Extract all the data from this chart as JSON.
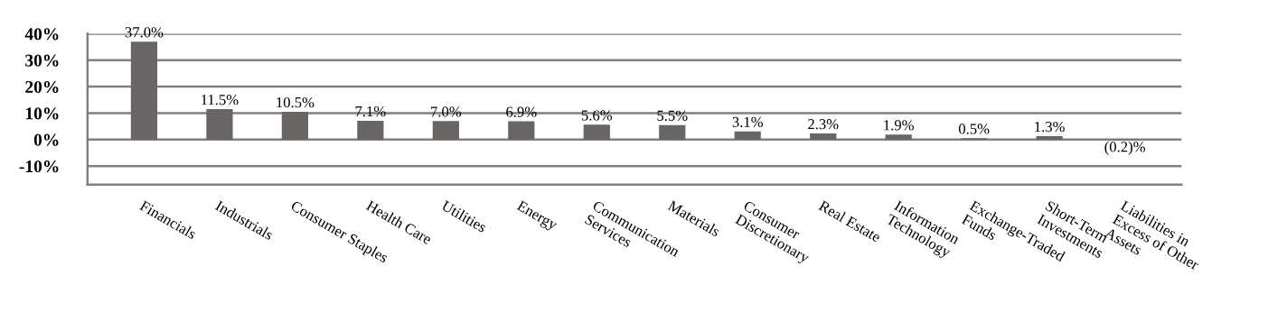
{
  "chart_data": {
    "type": "bar",
    "categories": [
      "Financials",
      "Industrials",
      "Consumer Staples",
      "Health Care",
      "Utilities",
      "Energy",
      "Communication\nServices",
      "Materials",
      "Consumer\nDiscretionary",
      "Real Estate",
      "Information\nTechnology",
      "Exchange-Traded\nFunds",
      "Short-Term\nInvestments",
      "Liabilities in\nExcess of Other\nAssets"
    ],
    "values": [
      37.0,
      11.5,
      10.5,
      7.1,
      7.0,
      6.9,
      5.6,
      5.5,
      3.1,
      2.3,
      1.9,
      0.5,
      1.3,
      -0.2
    ],
    "value_labels": [
      "37.0%",
      "11.5%",
      "10.5%",
      "7.1%",
      "7.0%",
      "6.9%",
      "5.6%",
      "5.5%",
      "3.1%",
      "2.3%",
      "1.9%",
      "0.5%",
      "1.3%",
      "(0.2)%"
    ],
    "color": "#696565",
    "ylim": [
      -17,
      40
    ],
    "yticks": [
      {
        "value": -10,
        "label": "-10%"
      },
      {
        "value": 0,
        "label": "0%"
      },
      {
        "value": 10,
        "label": "10%"
      },
      {
        "value": 20,
        "label": "20%"
      },
      {
        "value": 30,
        "label": "30%"
      },
      {
        "value": 40,
        "label": "40%"
      }
    ],
    "grid": "y",
    "legend": false
  }
}
